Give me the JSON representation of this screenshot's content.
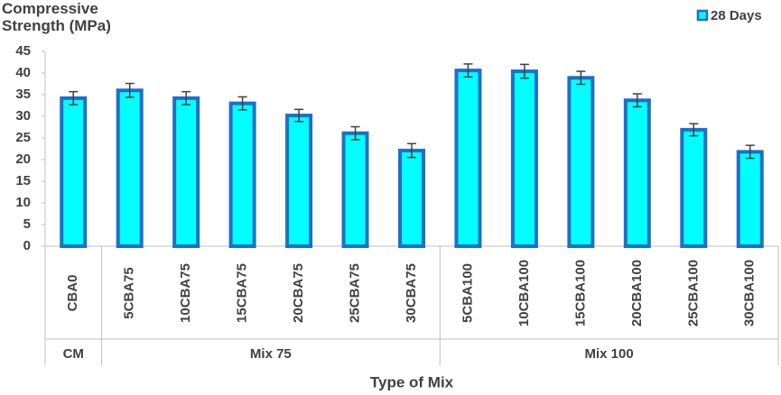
{
  "chart_data": {
    "type": "bar",
    "y_title": "Compressive Strength (MPa)",
    "x_title": "Type of Mix",
    "groups": [
      {
        "name": "CM",
        "categories": [
          "CBA0"
        ]
      },
      {
        "name": "Mix 75",
        "categories": [
          "5CBA75",
          "10CBA75",
          "15CBA75",
          "20CBA75",
          "25CBA75",
          "30CBA75"
        ]
      },
      {
        "name": "Mix 100",
        "categories": [
          "5CBA100",
          "10CBA100",
          "15CBA100",
          "20CBA100",
          "25CBA100",
          "30CBA100"
        ]
      }
    ],
    "series": [
      {
        "name": "28 Days",
        "color": "#00ffff",
        "edge_color": "#1f6fc5",
        "values": [
          [
            34.2
          ],
          [
            36.0,
            34.2,
            33.0,
            30.2,
            26.1,
            22.1
          ],
          [
            40.6,
            40.4,
            38.9,
            33.7,
            26.9,
            21.8
          ]
        ],
        "errors": [
          [
            1.5
          ],
          [
            1.6,
            1.5,
            1.5,
            1.4,
            1.5,
            1.6
          ],
          [
            1.5,
            1.6,
            1.5,
            1.5,
            1.4,
            1.5
          ]
        ]
      }
    ],
    "ylim": [
      0,
      45
    ],
    "yticks": [
      0,
      5,
      10,
      15,
      20,
      25,
      30,
      35,
      40,
      45
    ],
    "legend": "top-right"
  }
}
